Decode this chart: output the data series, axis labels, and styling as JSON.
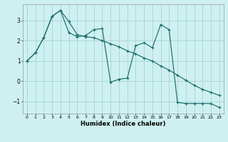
{
  "xlabel": "Humidex (Indice chaleur)",
  "bg_color": "#cff0f0",
  "grid_color": "#aad8d8",
  "line_color": "#1a6e6a",
  "xlim": [
    -0.5,
    23.5
  ],
  "ylim": [
    -1.6,
    3.8
  ],
  "yticks": [
    -1,
    0,
    1,
    2,
    3
  ],
  "xticks": [
    0,
    1,
    2,
    3,
    4,
    5,
    6,
    7,
    8,
    9,
    10,
    11,
    12,
    13,
    14,
    15,
    16,
    17,
    18,
    19,
    20,
    21,
    22,
    23
  ],
  "line1_x": [
    0,
    1,
    2,
    3,
    4,
    5,
    6,
    7,
    8,
    9,
    10,
    11,
    12,
    13,
    14,
    15,
    16,
    17,
    18,
    19,
    20,
    21,
    22,
    23
  ],
  "line1_y": [
    1.0,
    1.4,
    2.15,
    3.2,
    3.5,
    2.95,
    2.3,
    2.2,
    2.15,
    2.0,
    1.85,
    1.7,
    1.5,
    1.35,
    1.15,
    1.0,
    0.75,
    0.55,
    0.3,
    0.05,
    -0.2,
    -0.4,
    -0.55,
    -0.7
  ],
  "line2_x": [
    0,
    1,
    2,
    3,
    4,
    5,
    6,
    7,
    8,
    9,
    10,
    11,
    12,
    13,
    14,
    15,
    16,
    17,
    18,
    19,
    20,
    21,
    22,
    23
  ],
  "line2_y": [
    1.0,
    1.4,
    2.15,
    3.2,
    3.5,
    2.4,
    2.2,
    2.25,
    2.55,
    2.6,
    -0.05,
    0.1,
    0.15,
    1.75,
    1.9,
    1.65,
    2.8,
    2.55,
    -1.05,
    -1.1,
    -1.1,
    -1.1,
    -1.1,
    -1.3
  ]
}
